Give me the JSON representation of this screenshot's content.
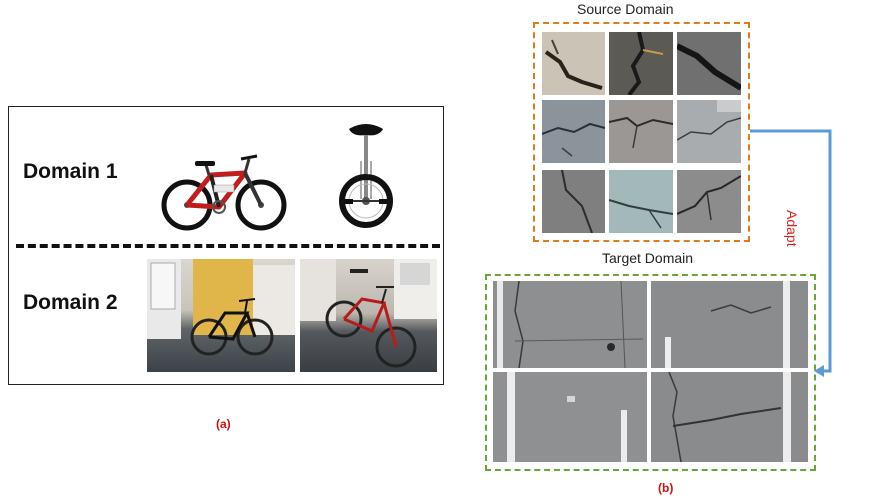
{
  "panel_a": {
    "domain1_label": "Domain 1",
    "domain2_label": "Domain 2",
    "caption": "(a)"
  },
  "panel_b": {
    "source_title": "Source Domain",
    "target_title": "Target Domain",
    "adapt_label": "Adapt",
    "caption": "(b)"
  },
  "colors": {
    "source_border": "#e07b1a",
    "target_border": "#6aa636",
    "arrow": "#5b9bd5",
    "adapt_text": "#e02020",
    "caption_text": "#cc1111"
  }
}
